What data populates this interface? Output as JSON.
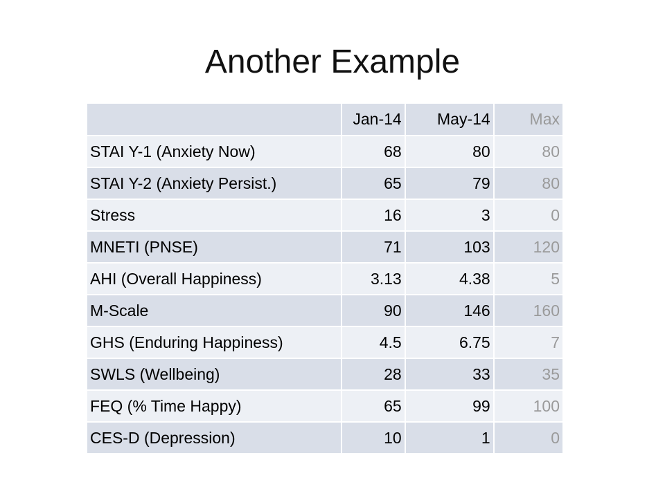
{
  "slide": {
    "title": "Another Example"
  },
  "table": {
    "headers": {
      "label": "",
      "jan": "Jan-14",
      "may": "May-14",
      "max": "Max"
    },
    "rows": [
      {
        "label": "STAI Y-1 (Anxiety Now)",
        "jan": "68",
        "may": "80",
        "max": "80"
      },
      {
        "label": "STAI Y-2 (Anxiety Persist.)",
        "jan": "65",
        "may": "79",
        "max": "80"
      },
      {
        "label": "Stress",
        "jan": "16",
        "may": "3",
        "max": "0"
      },
      {
        "label": "MNETI (PNSE)",
        "jan": "71",
        "may": "103",
        "max": "120"
      },
      {
        "label": "AHI (Overall Happiness)",
        "jan": "3.13",
        "may": "4.38",
        "max": "5"
      },
      {
        "label": "M-Scale",
        "jan": "90",
        "may": "146",
        "max": "160"
      },
      {
        "label": "GHS (Enduring Happiness)",
        "jan": "4.5",
        "may": "6.75",
        "max": "7"
      },
      {
        "label": "SWLS (Wellbeing)",
        "jan": "28",
        "may": "33",
        "max": "35"
      },
      {
        "label": "FEQ (% Time Happy)",
        "jan": "65",
        "may": "99",
        "max": "100"
      },
      {
        "label": "CES-D (Depression)",
        "jan": "10",
        "may": "1",
        "max": "0"
      }
    ]
  },
  "colors": {
    "row_dark": "#d9dee8",
    "row_light": "#edf0f5",
    "max_text": "#9a9a9a"
  }
}
